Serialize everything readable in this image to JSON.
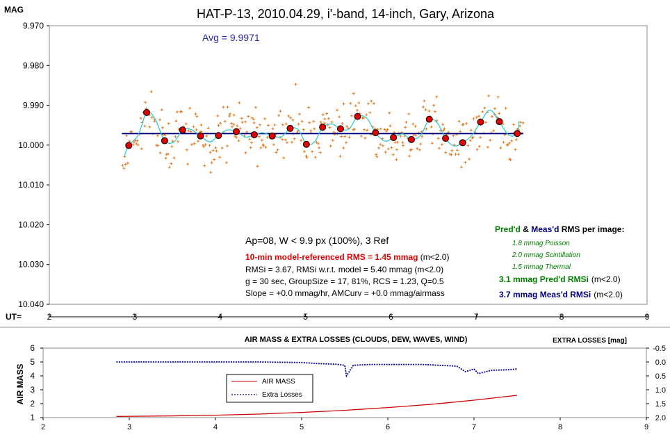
{
  "main_chart": {
    "title": "HAT-P-13, 2010.04.29, i'-band, 14-inch, Gary, Arizona",
    "ylabel": "MAG",
    "xlabel": "UT=",
    "avg_label": "Avg = 9.9971",
    "yticks": [
      "9.970",
      "9.980",
      "9.990",
      "10.000",
      "10.010",
      "10.020",
      "10.030",
      "10.040"
    ],
    "xticks": [
      "2",
      "3",
      "4",
      "5",
      "6",
      "7",
      "8",
      "9"
    ],
    "annotations": {
      "ap": "Ap=08, W < 9.9 px (100%), 3 Ref",
      "rms_bold": "10-min model-referenced RMS = 1.45 mmag",
      "rms_suffix": " (m<2.0)",
      "rmsi": "RMSi = 3.67, RMSi w.r.t. model = 5.40 mmag (m<2.0)",
      "group": "g = 30 sec, GroupSize = 17, 81%, RCS = 1.23, Q=0.5",
      "slope": "Slope = +0.0 mmag/hr, AMCurv = +0.0 mmag/airmass"
    },
    "rms_panel": {
      "pred": "Pred'd",
      "amp": " & ",
      "meas": "Meas'd",
      "rest": " RMS per image:",
      "poisson": "1.8 mmag Poisson",
      "scint": "2.0 mmag Scintillation",
      "thermal": "1.5 mmag Thermal",
      "pred_rmsi": "3.1 mmag Pred'd  RMSi",
      "meas_rmsi": "3.7 mmag Meas'd RMSi",
      "cond": "(m<2.0)"
    },
    "colors": {
      "points": "#e07b20",
      "binned": "#e00000",
      "model": "#33cccc",
      "avg_line": "#000080",
      "pred_green": "#008000",
      "meas_blue": "#000080",
      "rms_red": "#e00000"
    }
  },
  "chart_data": [
    {
      "type": "scatter",
      "title": "HAT-P-13, 2010.04.29, i'-band, 14-inch, Gary, Arizona",
      "xlabel": "UT=",
      "ylabel": "MAG",
      "xlim": [
        2,
        9
      ],
      "ylim": [
        9.97,
        10.04
      ],
      "y_inverted": true,
      "grid": false,
      "average": 9.9971,
      "avg_line_x": [
        2.85,
        7.55
      ],
      "series": [
        {
          "style": "individual",
          "x_range": [
            2.85,
            7.55
          ],
          "count": 380,
          "scatter_sd_mag": 0.0037
        },
        {
          "style": "binned",
          "x": [
            2.93,
            3.14,
            3.35,
            3.56,
            3.77,
            3.98,
            4.19,
            4.4,
            4.61,
            4.82,
            5.01,
            5.2,
            5.41,
            5.61,
            5.82,
            6.03,
            6.24,
            6.45,
            6.64,
            6.84,
            7.05,
            7.27,
            7.48
          ],
          "y": [
            10.0001,
            9.9918,
            9.9989,
            9.9962,
            9.9977,
            9.9976,
            9.9966,
            9.9974,
            9.9977,
            9.9958,
            9.9998,
            9.9955,
            9.9959,
            9.9928,
            9.9969,
            9.9981,
            9.9986,
            9.9935,
            9.9983,
            9.9994,
            9.9942,
            9.9941,
            9.9971
          ]
        },
        {
          "style": "model",
          "x": [
            2.88,
            2.93,
            3.04,
            3.14,
            3.24,
            3.35,
            3.46,
            3.56,
            3.66,
            3.77,
            3.88,
            3.98,
            4.08,
            4.19,
            4.3,
            4.4,
            4.5,
            4.61,
            4.72,
            4.82,
            4.92,
            5.01,
            5.11,
            5.2,
            5.31,
            5.41,
            5.51,
            5.61,
            5.72,
            5.82,
            5.93,
            6.03,
            6.14,
            6.24,
            6.35,
            6.45,
            6.55,
            6.64,
            6.74,
            6.84,
            6.95,
            7.05,
            7.16,
            7.27,
            7.38,
            7.48,
            7.5
          ],
          "y": [
            10.0027,
            10.0001,
            9.9975,
            9.9918,
            9.9935,
            9.9989,
            9.9992,
            9.9962,
            9.9961,
            9.9977,
            9.9992,
            9.9976,
            9.9962,
            9.9966,
            9.998,
            9.9974,
            9.9969,
            9.9977,
            9.9979,
            9.9958,
            9.9962,
            9.9998,
            9.9991,
            9.9955,
            9.9947,
            9.9959,
            9.996,
            9.9928,
            9.9933,
            9.9969,
            9.999,
            9.9981,
            9.9972,
            9.9986,
            9.9975,
            9.9935,
            9.9946,
            9.9983,
            10.0002,
            9.9994,
            9.9975,
            9.9942,
            9.9912,
            9.9941,
            9.9975,
            9.9971,
            9.994
          ]
        }
      ]
    },
    {
      "type": "line",
      "title": "AIR MASS & EXTRA LOSSES (CLOUDS, DEW, WAVES, WIND)",
      "ylabel": "AIR MASS",
      "y2label": "EXTRA LOSSES [mag]",
      "xlim": [
        2,
        9
      ],
      "ylim": [
        1,
        6
      ],
      "y2lim": [
        2.0,
        -0.5
      ],
      "xticks": [
        "2",
        "3",
        "4",
        "5",
        "6",
        "7",
        "8",
        "9"
      ],
      "yticks": [
        "1",
        "2",
        "3",
        "4",
        "5",
        "6"
      ],
      "y2ticks": [
        "2.0",
        "1.5",
        "1.0",
        "0.5",
        "0.0",
        "-0.5"
      ],
      "legend_position": "center-left",
      "series": [
        {
          "name": "AIR MASS",
          "color": "#cc0000",
          "x": [
            2.85,
            3.5,
            4.0,
            4.5,
            5.0,
            5.5,
            6.0,
            6.5,
            7.0,
            7.5
          ],
          "y": [
            1.08,
            1.12,
            1.17,
            1.25,
            1.37,
            1.52,
            1.72,
            1.95,
            2.25,
            2.6
          ]
        },
        {
          "name": "Extra Losses",
          "color": "#000099",
          "x": [
            2.85,
            3.5,
            4.0,
            4.5,
            5.0,
            5.2,
            5.4,
            5.5,
            5.52,
            5.6,
            5.8,
            6.0,
            6.2,
            6.4,
            6.6,
            6.8,
            6.9,
            7.0,
            7.05,
            7.2,
            7.4,
            7.5
          ],
          "y": [
            0.0,
            0.0,
            0.0,
            0.0,
            0.02,
            0.06,
            0.08,
            0.12,
            0.5,
            0.12,
            0.09,
            0.09,
            0.09,
            0.09,
            0.12,
            0.15,
            0.35,
            0.25,
            0.42,
            0.3,
            0.28,
            0.25
          ]
        }
      ]
    }
  ]
}
